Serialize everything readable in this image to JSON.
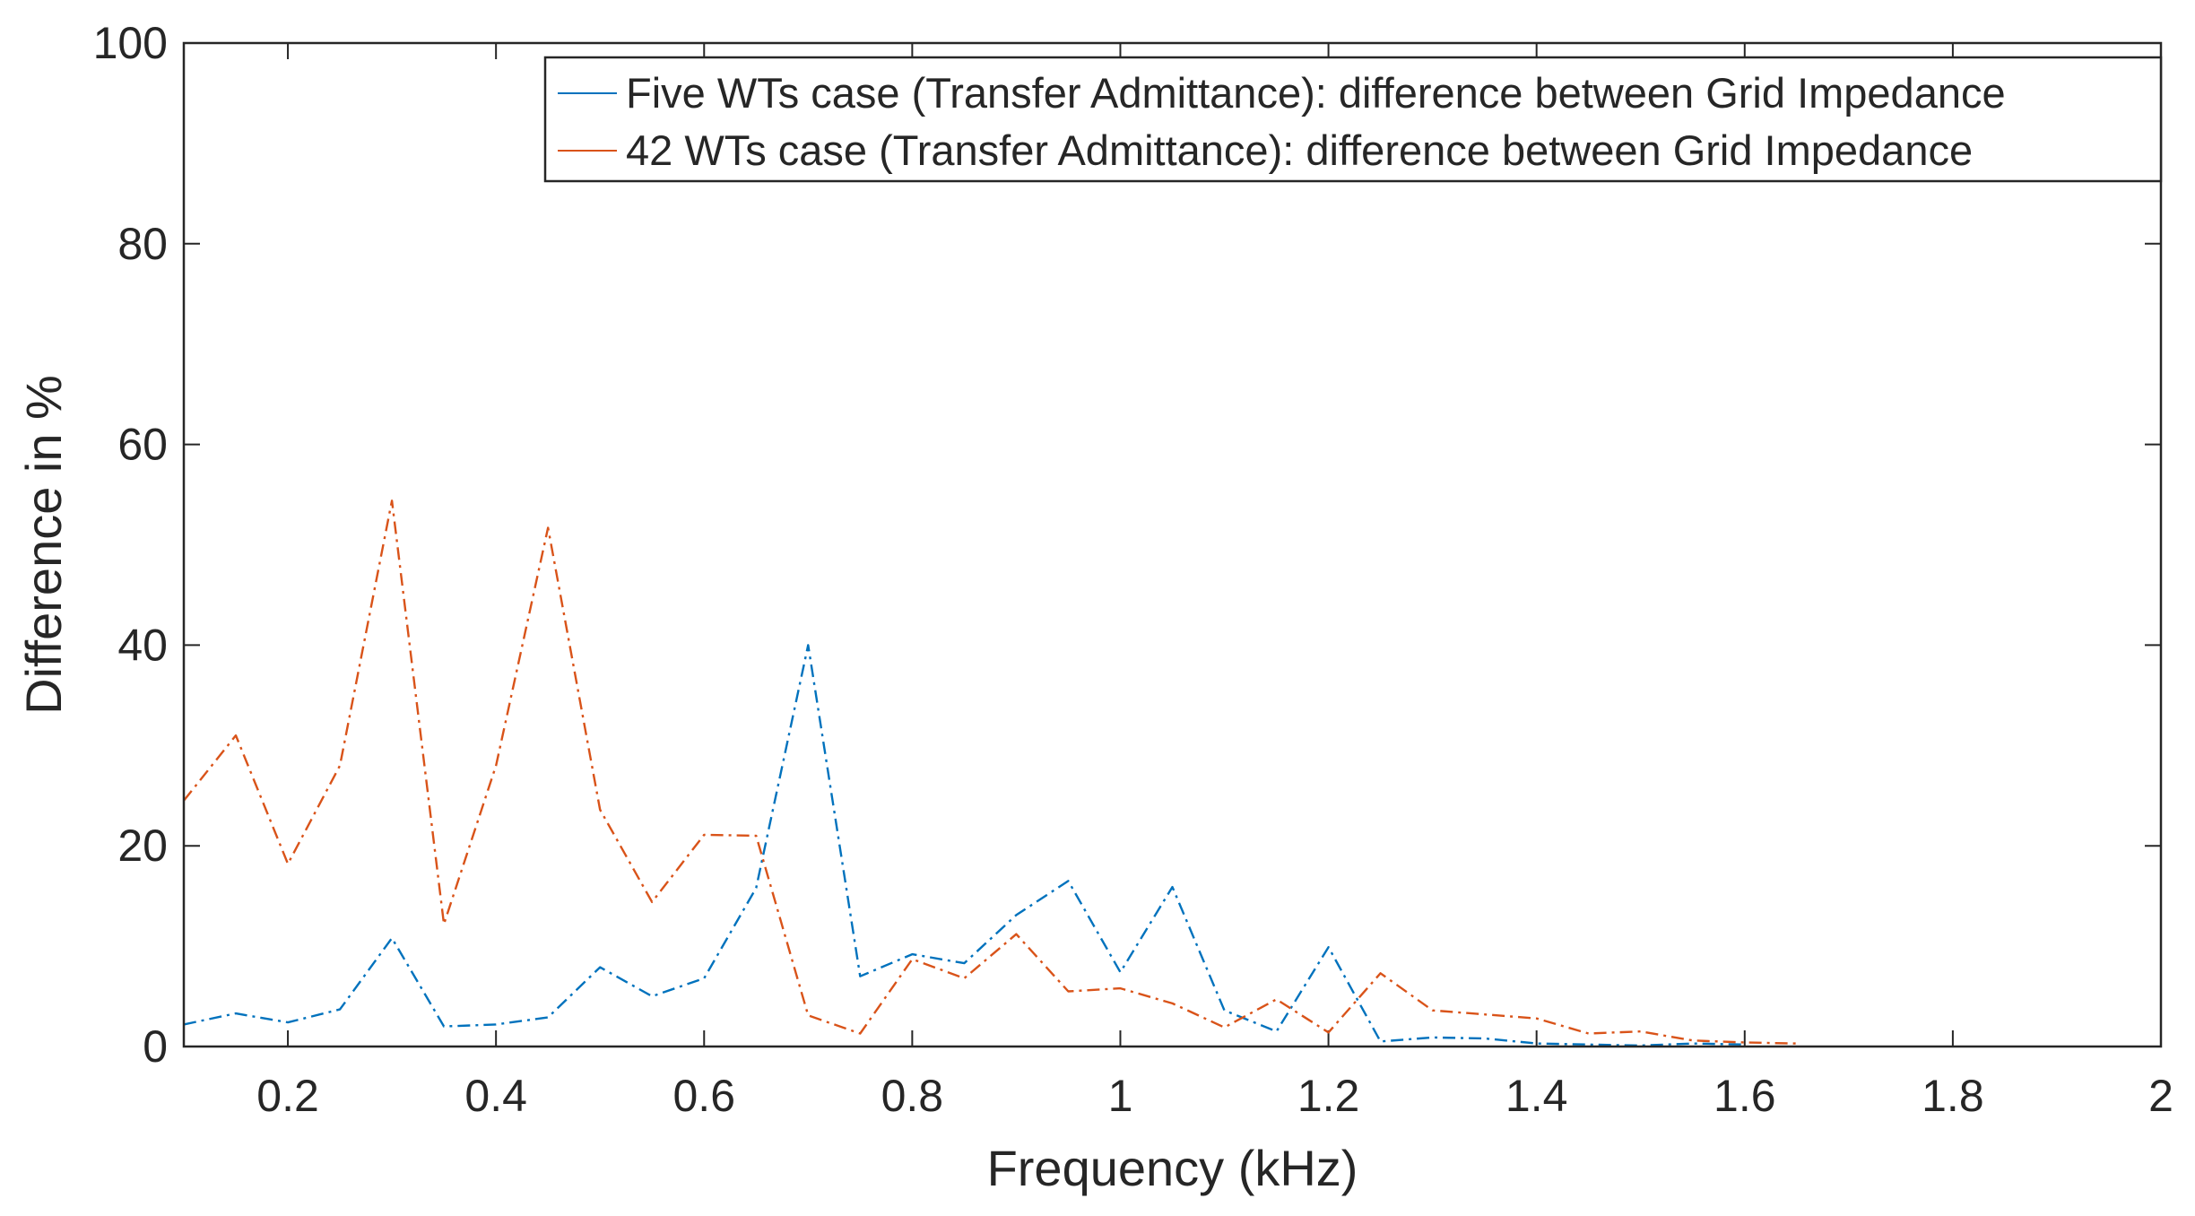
{
  "chart_data": {
    "type": "line",
    "xlabel": "Frequency (kHz)",
    "ylabel": "Difference in %",
    "xlim": [
      0.1,
      2
    ],
    "ylim": [
      0,
      100
    ],
    "xticks": [
      0.2,
      0.4,
      0.6,
      0.8,
      1,
      1.2,
      1.4,
      1.6,
      1.8,
      2
    ],
    "xtick_labels": [
      "0.2",
      "0.4",
      "0.6",
      "0.8",
      "1",
      "1.2",
      "1.4",
      "1.6",
      "1.8",
      "2"
    ],
    "yticks": [
      0,
      20,
      40,
      60,
      80,
      100
    ],
    "ytick_labels": [
      "0",
      "20",
      "40",
      "60",
      "80",
      "100"
    ],
    "grid": false,
    "legend_position": "top-right",
    "series": [
      {
        "name": "Five WTs case (Transfer Admittance): difference between Grid Impedance",
        "color": "#0072BD",
        "line_style": "dash-dot",
        "x": [
          0.1,
          0.15,
          0.2,
          0.25,
          0.3,
          0.35,
          0.4,
          0.45,
          0.5,
          0.55,
          0.6,
          0.65,
          0.7,
          0.75,
          0.8,
          0.85,
          0.9,
          0.95,
          1.0,
          1.05,
          1.1,
          1.15,
          1.2,
          1.25,
          1.3,
          1.35,
          1.4,
          1.45,
          1.5,
          1.55,
          1.6
        ],
        "y": [
          2.2,
          3.3,
          2.4,
          3.7,
          10.8,
          2.0,
          2.2,
          2.9,
          7.9,
          5.0,
          6.8,
          15.8,
          40,
          7.0,
          9.2,
          8.3,
          13.1,
          16.5,
          7.4,
          15.9,
          3.6,
          1.5,
          9.9,
          0.5,
          0.9,
          0.8,
          0.3,
          0.2,
          0.1,
          0.3,
          0.2
        ]
      },
      {
        "name": "42 WTs case (Transfer Admittance): difference between Grid Impedance",
        "color": "#D95319",
        "line_style": "dash-dot",
        "x": [
          0.1,
          0.15,
          0.2,
          0.25,
          0.3,
          0.35,
          0.4,
          0.45,
          0.5,
          0.55,
          0.6,
          0.65,
          0.7,
          0.75,
          0.8,
          0.85,
          0.9,
          0.95,
          1.0,
          1.05,
          1.1,
          1.15,
          1.2,
          1.25,
          1.3,
          1.35,
          1.4,
          1.45,
          1.5,
          1.55,
          1.6,
          1.65
        ],
        "y": [
          24.5,
          31,
          18.2,
          28,
          54.4,
          12.2,
          28,
          51.7,
          23.6,
          14.4,
          21.1,
          21.0,
          3.1,
          1.3,
          8.7,
          6.8,
          11.2,
          5.5,
          5.8,
          4.3,
          1.9,
          4.7,
          1.4,
          7.3,
          3.6,
          3.2,
          2.8,
          1.3,
          1.5,
          0.6,
          0.4,
          0.3
        ]
      }
    ]
  }
}
